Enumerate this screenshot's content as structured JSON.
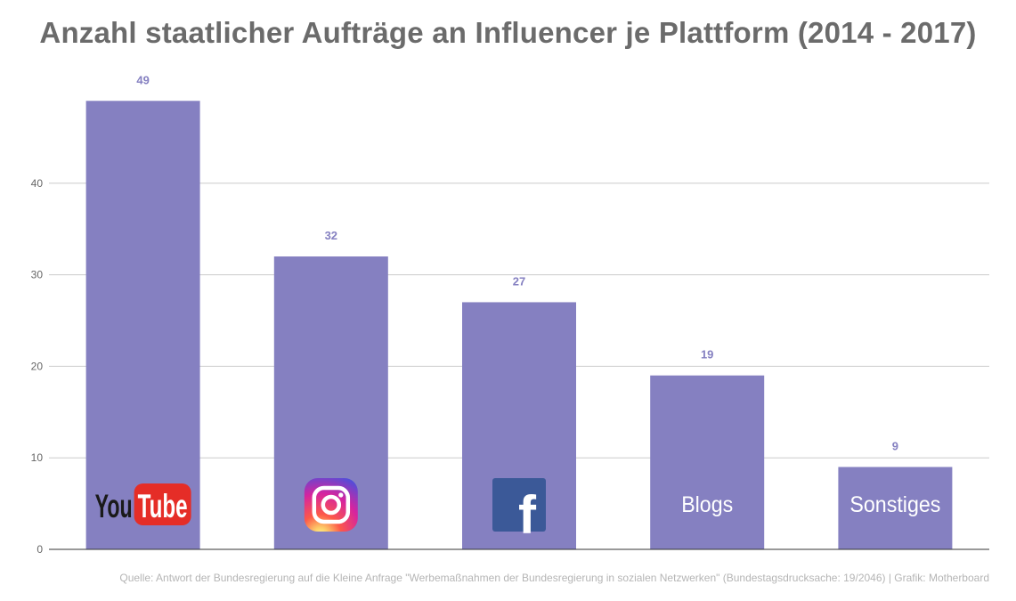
{
  "title": "Anzahl staatlicher Aufträge an Influencer je Plattform  (2014 - 2017)",
  "source": "Quelle: Antwort der Bundesregierung auf die Kleine Anfrage \"Werbemaßnahmen der Bundesregierung in sozialen Netzwerken\" (Bundestagsdrucksache: 19/2046) | Grafik: Motherboard",
  "colors": {
    "bar": "#8580c1",
    "label": "#8580c1",
    "grid": "#cccccc",
    "axis": "#333333",
    "tick": "#666666",
    "youtube_red": "#e52d27",
    "facebook_blue": "#3b5998"
  },
  "chart_data": {
    "type": "bar",
    "categories": [
      "YouTube",
      "Instagram",
      "Facebook",
      "Blogs",
      "Sonstiges"
    ],
    "category_display": [
      {
        "kind": "logo",
        "icon": "youtube-logo",
        "text": "You",
        "text2": "Tube"
      },
      {
        "kind": "logo",
        "icon": "instagram-logo"
      },
      {
        "kind": "logo",
        "icon": "facebook-logo",
        "text": "f"
      },
      {
        "kind": "text",
        "text": "Blogs"
      },
      {
        "kind": "text",
        "text": "Sonstiges"
      }
    ],
    "values": [
      49,
      32,
      27,
      19,
      9
    ],
    "yticks": [
      0,
      10,
      20,
      30,
      40
    ],
    "ylim": [
      0,
      50
    ],
    "grid": true,
    "legend": "none",
    "xlabel": "",
    "ylabel": ""
  }
}
